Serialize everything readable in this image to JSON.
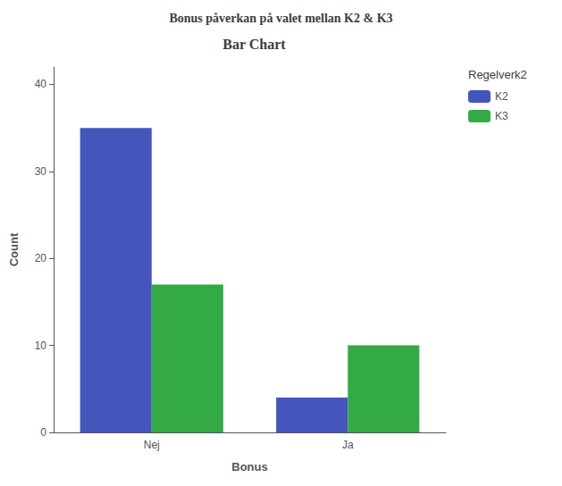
{
  "chart_data": {
    "type": "bar",
    "title": "Bonus påverkan på valet mellan K2 & K3",
    "subtitle": "Bar Chart",
    "categories": [
      "Nej",
      "Ja"
    ],
    "series": [
      {
        "name": "K2",
        "color": "#4455bb",
        "values": [
          35,
          4
        ]
      },
      {
        "name": "K3",
        "color": "#33aa44",
        "values": [
          17,
          10
        ]
      }
    ],
    "xlabel": "Bonus",
    "ylabel": "Count",
    "ylim": [
      0,
      42
    ],
    "yticks": [
      0,
      10,
      20,
      30,
      40
    ],
    "legend": "right",
    "legend_title": "Regelverk2",
    "grid": false
  }
}
